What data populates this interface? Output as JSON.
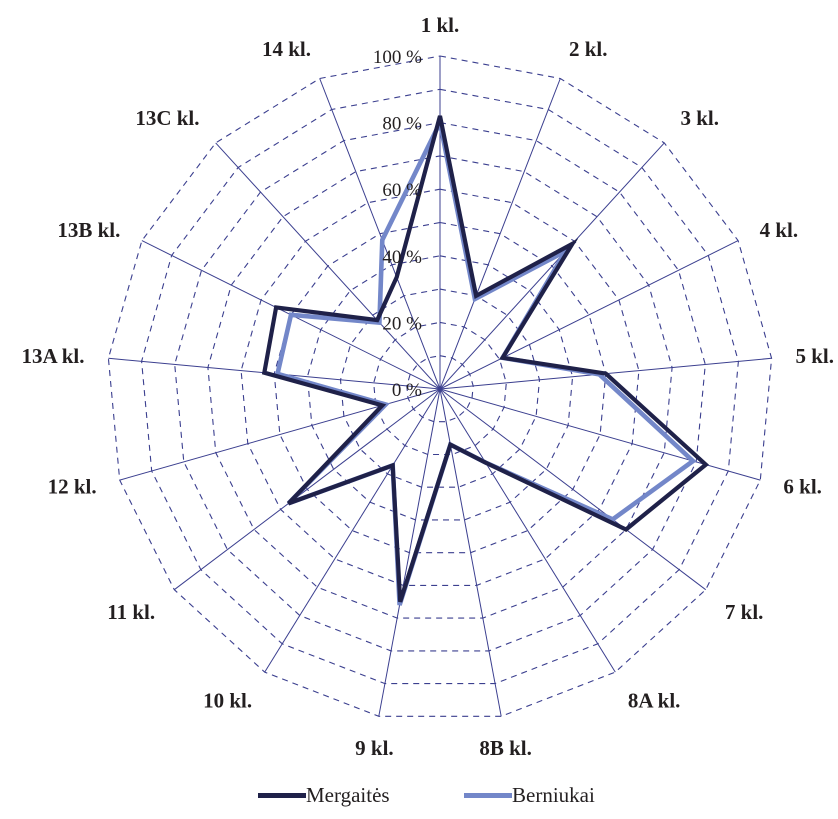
{
  "chart_data": {
    "type": "radar",
    "title": "",
    "categories": [
      "1 kl.",
      "2 kl.",
      "3 kl.",
      "4 kl.",
      "5 kl.",
      "6 kl.",
      "7 kl.",
      "8A kl.",
      "8B kl.",
      "9 kl.",
      "10 kl.",
      "11 kl.",
      "12 kl.",
      "13A kl.",
      "13B kl.",
      "13C kl.",
      "14 kl."
    ],
    "radial_ticks": [
      "0 %",
      "20 %",
      "40 %",
      "60 %",
      "80 %",
      "100 %"
    ],
    "rlim": [
      0,
      100
    ],
    "grid": true,
    "legend_position": "bottom",
    "series": [
      {
        "name": "Mergaitės",
        "color": "#1f2149",
        "values": [
          82,
          30,
          59,
          21,
          50,
          83,
          70,
          26,
          17,
          65,
          27,
          57,
          18,
          53,
          55,
          28,
          36
        ]
      },
      {
        "name": "Berniukai",
        "color": "#7387c9",
        "values": [
          80,
          29,
          56,
          21,
          48,
          79,
          65,
          26,
          17,
          66,
          27,
          57,
          17,
          49,
          50,
          27,
          48
        ]
      }
    ]
  }
}
